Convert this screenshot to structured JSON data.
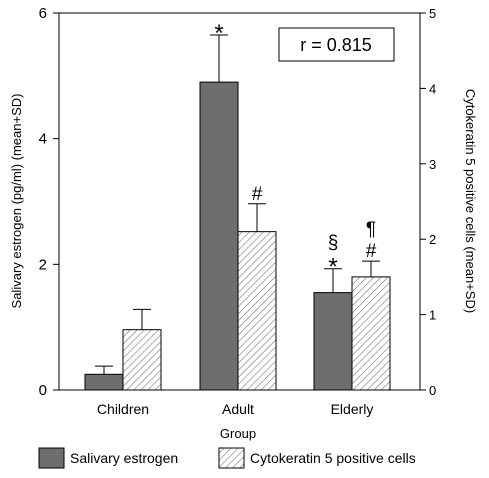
{
  "chart_data": {
    "type": "bar",
    "categories": [
      "Children",
      "Adult",
      "Elderly"
    ],
    "xlabel": "Group",
    "ylabel": "Salivary estrogen (pg/ml) (mean+SD)",
    "y2label": "Cytokeratin 5 positive cells (mean+SD)",
    "ylim": [
      0,
      6
    ],
    "y2lim": [
      0,
      5
    ],
    "yticks": [
      "0",
      "2",
      "4",
      "6"
    ],
    "y2ticks": [
      "0",
      "1",
      "2",
      "3",
      "4",
      "5"
    ],
    "grid": false,
    "legend_position": "bottom",
    "series": [
      {
        "name": "Salivary estrogen",
        "axis": "left",
        "values": [
          0.25,
          4.9,
          1.55
        ],
        "sd": [
          0.13,
          0.75,
          0.38
        ],
        "markers": [
          "",
          "*",
          "§\n*"
        ],
        "color": "#6e6e6e",
        "pattern": "solid"
      },
      {
        "name": "Cytokeratin 5 positive cells",
        "axis": "right",
        "values": [
          0.8,
          2.1,
          1.5
        ],
        "sd": [
          0.27,
          0.37,
          0.21
        ],
        "markers": [
          "",
          "#",
          "¶\n#"
        ],
        "color": "#ffffff",
        "pattern": "hatch"
      }
    ],
    "annotation": "r = 0.815"
  }
}
